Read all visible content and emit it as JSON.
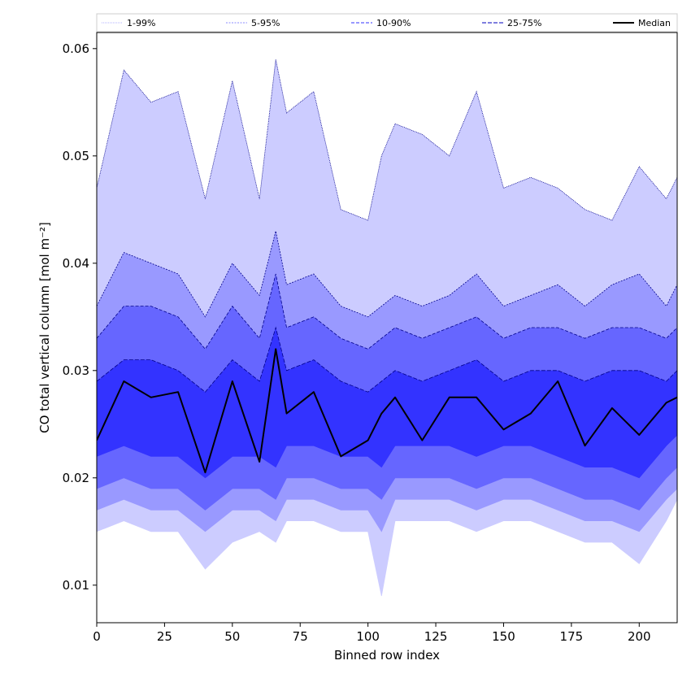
{
  "chart_data": {
    "type": "area",
    "title": "",
    "xlabel": "Binned row index",
    "ylabel": "CO total vertical column [mol m⁻²]",
    "xlim": [
      0,
      214
    ],
    "ylim": [
      0.0065,
      0.0615
    ],
    "xticks": [
      0,
      25,
      50,
      75,
      100,
      125,
      150,
      175,
      200
    ],
    "yticks": [
      0.01,
      0.02,
      0.03,
      0.04,
      0.05,
      0.06
    ],
    "ytick_labels": [
      "0.01",
      "0.02",
      "0.03",
      "0.04",
      "0.05",
      "0.06"
    ],
    "grid": false,
    "legend_position": "top",
    "legend": [
      "1-99%",
      "5-95%",
      "10-90%",
      "25-75%",
      "Median"
    ],
    "colors": {
      "band_1_99": "#ccccff",
      "band_5_95": "#9999ff",
      "band_10_90": "#6666ff",
      "band_25_75": "#3333ff",
      "median": "#000000",
      "edge": "#00008b"
    },
    "x": [
      0,
      10,
      20,
      30,
      40,
      50,
      60,
      66,
      70,
      80,
      90,
      100,
      105,
      110,
      120,
      130,
      140,
      150,
      160,
      170,
      180,
      190,
      200,
      210,
      214
    ],
    "series": [
      {
        "name": "1-99%",
        "kind": "band",
        "lower": [
          0.015,
          0.016,
          0.015,
          0.015,
          0.0115,
          0.014,
          0.015,
          0.014,
          0.016,
          0.016,
          0.015,
          0.015,
          0.009,
          0.016,
          0.016,
          0.016,
          0.015,
          0.016,
          0.016,
          0.015,
          0.014,
          0.014,
          0.012,
          0.016,
          0.018
        ],
        "upper": [
          0.047,
          0.058,
          0.055,
          0.056,
          0.046,
          0.057,
          0.046,
          0.059,
          0.054,
          0.056,
          0.045,
          0.044,
          0.05,
          0.053,
          0.052,
          0.05,
          0.056,
          0.047,
          0.048,
          0.047,
          0.045,
          0.044,
          0.049,
          0.046,
          0.048
        ]
      },
      {
        "name": "5-95%",
        "kind": "band",
        "lower": [
          0.017,
          0.018,
          0.017,
          0.017,
          0.015,
          0.017,
          0.017,
          0.016,
          0.018,
          0.018,
          0.017,
          0.017,
          0.015,
          0.018,
          0.018,
          0.018,
          0.017,
          0.018,
          0.018,
          0.017,
          0.016,
          0.016,
          0.015,
          0.018,
          0.019
        ],
        "upper": [
          0.036,
          0.041,
          0.04,
          0.039,
          0.035,
          0.04,
          0.037,
          0.043,
          0.038,
          0.039,
          0.036,
          0.035,
          0.036,
          0.037,
          0.036,
          0.037,
          0.039,
          0.036,
          0.037,
          0.038,
          0.036,
          0.038,
          0.039,
          0.036,
          0.038
        ]
      },
      {
        "name": "10-90%",
        "kind": "band",
        "lower": [
          0.019,
          0.02,
          0.019,
          0.019,
          0.017,
          0.019,
          0.019,
          0.018,
          0.02,
          0.02,
          0.019,
          0.019,
          0.018,
          0.02,
          0.02,
          0.02,
          0.019,
          0.02,
          0.02,
          0.019,
          0.018,
          0.018,
          0.017,
          0.02,
          0.021
        ],
        "upper": [
          0.033,
          0.036,
          0.036,
          0.035,
          0.032,
          0.036,
          0.033,
          0.039,
          0.034,
          0.035,
          0.033,
          0.032,
          0.033,
          0.034,
          0.033,
          0.034,
          0.035,
          0.033,
          0.034,
          0.034,
          0.033,
          0.034,
          0.034,
          0.033,
          0.034
        ]
      },
      {
        "name": "25-75%",
        "kind": "band",
        "lower": [
          0.022,
          0.023,
          0.022,
          0.022,
          0.02,
          0.022,
          0.022,
          0.021,
          0.023,
          0.023,
          0.022,
          0.022,
          0.021,
          0.023,
          0.023,
          0.023,
          0.022,
          0.023,
          0.023,
          0.022,
          0.021,
          0.021,
          0.02,
          0.023,
          0.024
        ],
        "upper": [
          0.029,
          0.031,
          0.031,
          0.03,
          0.028,
          0.031,
          0.029,
          0.034,
          0.03,
          0.031,
          0.029,
          0.028,
          0.029,
          0.03,
          0.029,
          0.03,
          0.031,
          0.029,
          0.03,
          0.03,
          0.029,
          0.03,
          0.03,
          0.029,
          0.03
        ]
      },
      {
        "name": "Median",
        "kind": "line",
        "values": [
          0.0235,
          0.029,
          0.0275,
          0.028,
          0.0205,
          0.029,
          0.0215,
          0.032,
          0.026,
          0.028,
          0.022,
          0.0235,
          0.026,
          0.0275,
          0.0235,
          0.0275,
          0.0275,
          0.0245,
          0.026,
          0.029,
          0.023,
          0.0265,
          0.024,
          0.027,
          0.0275
        ]
      }
    ]
  }
}
